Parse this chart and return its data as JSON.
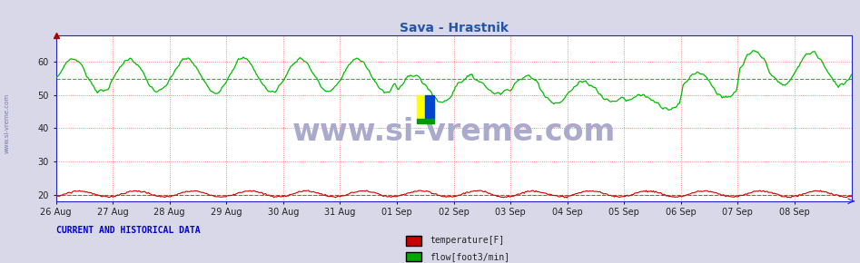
{
  "title": "Sava - Hrastnik",
  "title_color": "#2255aa",
  "title_fontsize": 10,
  "bg_color": "#e8e8f0",
  "plot_bg_color": "#ffffff",
  "outer_bg_color": "#d8d8e8",
  "grid_color": "#ffaaaa",
  "axis_color": "#2222cc",
  "tick_color": "#222222",
  "ylim": [
    18,
    68
  ],
  "yticks": [
    20,
    30,
    40,
    50,
    60
  ],
  "x_labels": [
    "26 Aug",
    "27 Aug",
    "28 Aug",
    "29 Aug",
    "30 Aug",
    "31 Aug",
    "01 Sep",
    "02 Sep",
    "03 Sep",
    "04 Sep",
    "05 Sep",
    "06 Sep",
    "07 Sep",
    "08 Sep"
  ],
  "watermark": "www.si-vreme.com",
  "watermark_color": "#aaaacc",
  "watermark_fontsize": 24,
  "legend_title": "CURRENT AND HISTORICAL DATA",
  "legend_items": [
    "temperature[F]",
    "flow[foot3/min]"
  ],
  "legend_colors": [
    "#cc0000",
    "#00aa00"
  ],
  "temp_color": "#cc0000",
  "flow_color": "#00bb00",
  "temp_mean": 20.0,
  "flow_mean": 54.8,
  "side_label": "www.si-vreme.com",
  "side_label_color": "#7777aa"
}
